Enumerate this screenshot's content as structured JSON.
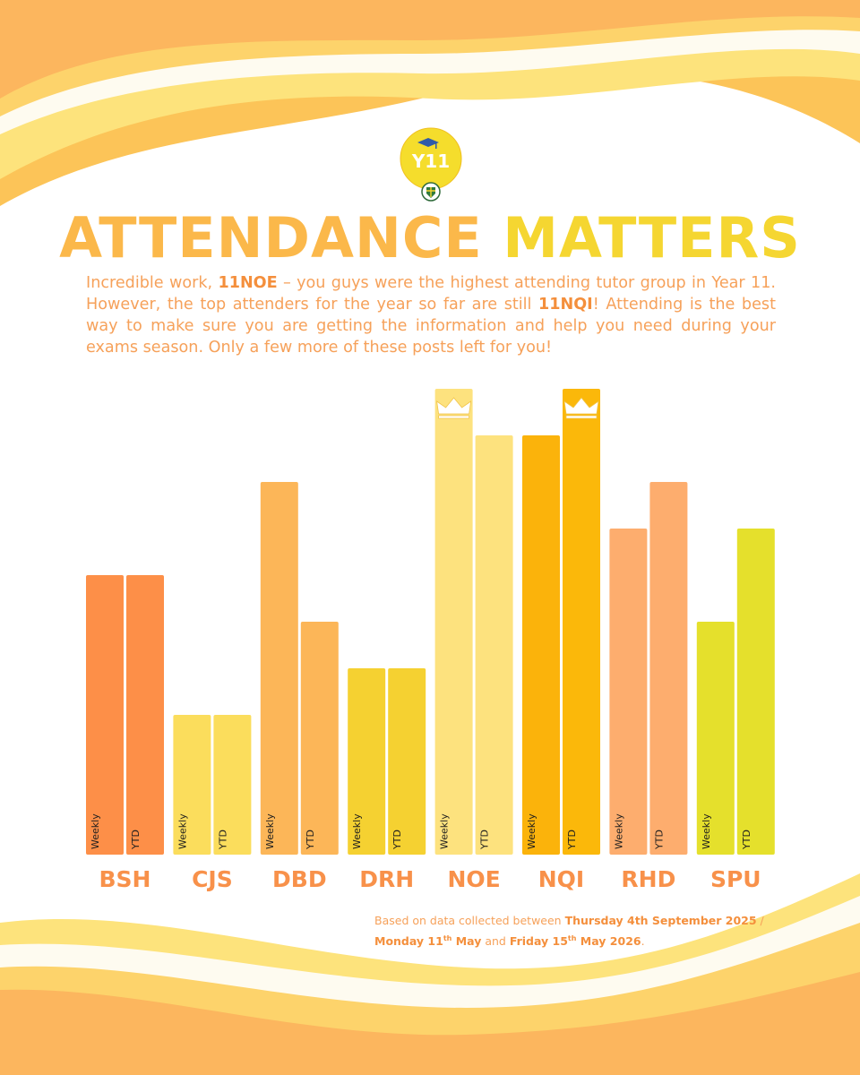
{
  "title": {
    "part1": "ATTENDANCE",
    "part2": "MATTERS"
  },
  "logo": {
    "text": "Y11"
  },
  "intro": {
    "s1": "Incredible work, ",
    "b1": "11NOE",
    "s2": " – you guys were the highest attending tutor group in Year 11. However, the top attenders for the year so far are still ",
    "b2": "11NQI",
    "s3": "! Attending is the best way to make sure you are getting the information and help you need during your exams season. Only a few more of these posts left for you!"
  },
  "footnote": {
    "s1": "Based on data collected between ",
    "d1": "Thursday 4th September 2025",
    "s2": " / ",
    "d2": "Monday 11",
    "d2sup": "th",
    "d2b": " May",
    "s3": " and ",
    "d3": "Friday 15",
    "d3sup": "th",
    "d3b": " May 2026",
    "s4": "."
  },
  "chart_data": {
    "type": "bar",
    "categories": [
      "BSH",
      "CJS",
      "DBD",
      "DRH",
      "NOE",
      "NQI",
      "RHD",
      "SPU"
    ],
    "series": [
      {
        "name": "Weekly",
        "values": [
          6,
          3,
          8,
          4,
          10,
          9,
          7,
          5
        ]
      },
      {
        "name": "YTD",
        "values": [
          6,
          3,
          5,
          4,
          9,
          10,
          8,
          7
        ]
      }
    ],
    "bar_labels": [
      "Weekly",
      "YTD"
    ],
    "value_axis": "rank (1 = lowest, 10 = highest); no numeric axis printed",
    "ylim": [
      0,
      10
    ],
    "crowns": [
      {
        "category": "NOE",
        "series": "Weekly"
      },
      {
        "category": "NQI",
        "series": "YTD"
      }
    ],
    "colors": {
      "BSH": [
        "#fd8f48",
        "#fd8f48"
      ],
      "CJS": [
        "#fbdd5c",
        "#fbdd5c"
      ],
      "DBD": [
        "#fcb658",
        "#fcb658"
      ],
      "DRH": [
        "#f5d131",
        "#f5d131"
      ],
      "NOE": [
        "#fde27e",
        "#fde27e"
      ],
      "NQI": [
        "#fbb30b",
        "#fbb80a"
      ],
      "RHD": [
        "#fdad6e",
        "#fdad6e"
      ],
      "SPU": [
        "#e5e02c",
        "#e5e02c"
      ]
    },
    "category_label_color": "#f8914a"
  }
}
